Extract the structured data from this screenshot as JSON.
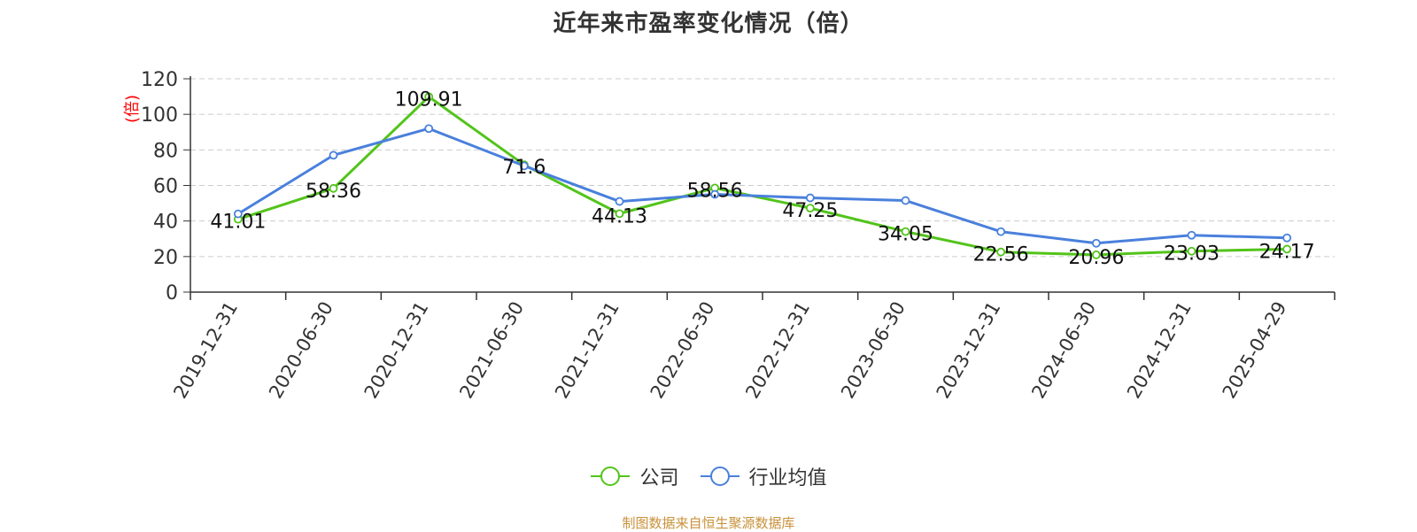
{
  "title": "近年来市盈率变化情况（倍）",
  "source": "制图数据来自恒生聚源数据库",
  "colors": {
    "company": "#52c41a",
    "industry": "#4a80dc",
    "unit": "#ff0000",
    "source": "#c8913a"
  },
  "chart_data": {
    "type": "line",
    "title": "近年来市盈率变化情况（倍）",
    "xlabel": "",
    "ylabel": "(倍)",
    "ylim": [
      0,
      120
    ],
    "yticks": [
      0,
      20,
      40,
      60,
      80,
      100,
      120
    ],
    "grid": true,
    "legend_position": "bottom",
    "categories": [
      "2019-12-31",
      "2020-06-30",
      "2020-12-31",
      "2021-06-30",
      "2021-12-31",
      "2022-06-30",
      "2022-12-31",
      "2023-06-30",
      "2023-12-31",
      "2024-06-30",
      "2024-12-31",
      "2025-04-29"
    ],
    "series": [
      {
        "name": "公司",
        "color": "#52c41a",
        "values": [
          41.01,
          58.36,
          109.91,
          71.6,
          44.13,
          58.56,
          47.25,
          34.05,
          22.56,
          20.96,
          23.03,
          24.17
        ],
        "labels": [
          "41.01",
          "58.36",
          "109.91",
          "71.6",
          "44.13",
          "58.56",
          "47.25",
          "34.05",
          "22.56",
          "20.96",
          "23.03",
          "24.17"
        ]
      },
      {
        "name": "行业均值",
        "color": "#4a80dc",
        "values": [
          44,
          77,
          92,
          71,
          51,
          55,
          53,
          51.5,
          34,
          27.5,
          32,
          30.5
        ]
      }
    ]
  }
}
